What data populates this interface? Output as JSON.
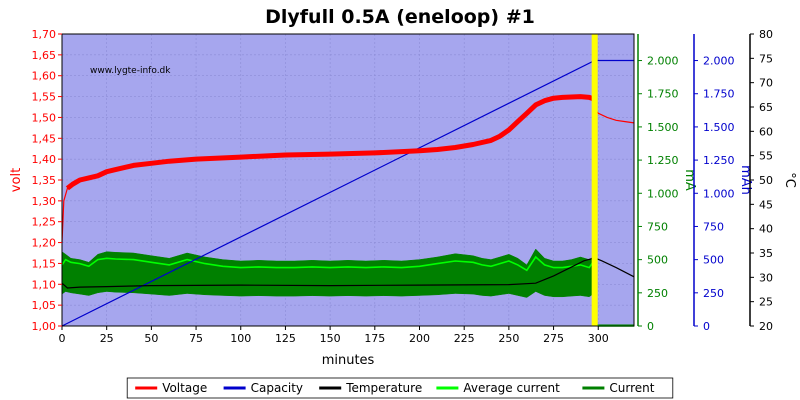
{
  "chart_data": {
    "type": "line",
    "title": "Dlyfull 0.5A (eneloop) #1",
    "watermark": "www.lygte-info.dk",
    "xlabel": "minutes",
    "xlim": [
      0,
      320
    ],
    "xticks": [
      0,
      25,
      50,
      75,
      100,
      125,
      150,
      175,
      200,
      225,
      250,
      275,
      300
    ],
    "marker_x": 298,
    "axes": {
      "volt": {
        "label": "volt",
        "lim": [
          1.0,
          1.7
        ],
        "ticks": [
          "1,00",
          "1,05",
          "1,10",
          "1,15",
          "1,20",
          "1,25",
          "1,30",
          "1,35",
          "1,40",
          "1,45",
          "1,50",
          "1,55",
          "1,60",
          "1,65",
          "1,70"
        ],
        "color": "#ff0000"
      },
      "mA": {
        "label": "mA",
        "lim": [
          0,
          2200
        ],
        "ticks": [
          "0",
          "250",
          "500",
          "750",
          "1.000",
          "1.250",
          "1.500",
          "1.750",
          "2.000"
        ],
        "color": "#008000"
      },
      "mAh": {
        "label": "mAh",
        "lim": [
          0,
          2200
        ],
        "ticks": [
          "0",
          "250",
          "500",
          "750",
          "1.000",
          "1.250",
          "1.500",
          "1.750",
          "2.000"
        ],
        "color": "#0000cc"
      },
      "temp": {
        "label": "°C",
        "lim": [
          20,
          80
        ],
        "ticks": [
          "20",
          "25",
          "30",
          "35",
          "40",
          "45",
          "50",
          "55",
          "60",
          "65",
          "70",
          "75",
          "80"
        ],
        "color": "#000000"
      }
    },
    "series": [
      {
        "name": "Voltage",
        "axis": "volt",
        "color": "#ff0000",
        "x": [
          0,
          1,
          3,
          6,
          10,
          15,
          20,
          25,
          30,
          40,
          50,
          60,
          75,
          100,
          125,
          150,
          175,
          200,
          210,
          220,
          230,
          240,
          245,
          250,
          255,
          260,
          265,
          270,
          275,
          280,
          285,
          290,
          295,
          297,
          298,
          300,
          305,
          310,
          315,
          320
        ],
        "y": [
          1.2,
          1.3,
          1.33,
          1.34,
          1.35,
          1.355,
          1.36,
          1.37,
          1.375,
          1.385,
          1.39,
          1.395,
          1.4,
          1.405,
          1.41,
          1.412,
          1.415,
          1.42,
          1.423,
          1.428,
          1.435,
          1.445,
          1.455,
          1.47,
          1.49,
          1.51,
          1.53,
          1.54,
          1.546,
          1.548,
          1.549,
          1.55,
          1.548,
          1.545,
          1.52,
          1.51,
          1.5,
          1.493,
          1.49,
          1.487
        ]
      },
      {
        "name": "Capacity",
        "axis": "mAh",
        "color": "#0000cc",
        "x": [
          0,
          298,
          320
        ],
        "y": [
          0,
          2000,
          2000
        ]
      },
      {
        "name": "Temperature",
        "axis": "temp",
        "color": "#000000",
        "x": [
          0,
          3,
          10,
          25,
          50,
          100,
          150,
          200,
          250,
          265,
          275,
          285,
          292,
          298,
          302,
          310,
          320
        ],
        "y": [
          28.8,
          27.8,
          28.0,
          28.1,
          28.3,
          28.4,
          28.3,
          28.4,
          28.5,
          28.8,
          30.3,
          32.1,
          33.4,
          34.0,
          33.4,
          32.0,
          30.1
        ]
      },
      {
        "name": "Average current",
        "axis": "mA",
        "color": "#00ff00",
        "x": [
          0,
          2,
          5,
          10,
          15,
          20,
          25,
          30,
          40,
          50,
          60,
          70,
          80,
          90,
          100,
          110,
          120,
          130,
          140,
          150,
          160,
          170,
          180,
          190,
          200,
          210,
          220,
          230,
          235,
          240,
          245,
          250,
          255,
          260,
          265,
          270,
          275,
          280,
          285,
          290,
          295,
          297,
          298,
          300,
          320
        ],
        "y": [
          460,
          500,
          480,
          470,
          450,
          500,
          510,
          505,
          500,
          480,
          460,
          500,
          470,
          450,
          440,
          445,
          440,
          440,
          445,
          440,
          445,
          440,
          445,
          440,
          450,
          470,
          490,
          480,
          460,
          450,
          470,
          490,
          460,
          420,
          520,
          460,
          440,
          440,
          450,
          460,
          440,
          480,
          20,
          0,
          0
        ]
      },
      {
        "name": "Current",
        "axis": "mA",
        "color": "#008000",
        "x": [
          0,
          2,
          5,
          10,
          15,
          20,
          25,
          30,
          40,
          50,
          60,
          70,
          80,
          90,
          100,
          110,
          120,
          130,
          140,
          150,
          160,
          170,
          180,
          190,
          200,
          210,
          220,
          230,
          235,
          240,
          245,
          250,
          255,
          260,
          265,
          270,
          275,
          280,
          285,
          290,
          295,
          297,
          298,
          300,
          320
        ],
        "ymin": [
          240,
          260,
          250,
          240,
          230,
          250,
          260,
          255,
          250,
          240,
          230,
          245,
          235,
          230,
          225,
          228,
          225,
          225,
          228,
          225,
          228,
          225,
          228,
          225,
          230,
          235,
          245,
          240,
          230,
          225,
          235,
          245,
          230,
          215,
          260,
          230,
          220,
          220,
          225,
          230,
          220,
          240,
          0,
          0,
          0
        ],
        "ymax": [
          560,
          540,
          510,
          500,
          480,
          540,
          560,
          555,
          550,
          530,
          510,
          550,
          520,
          500,
          490,
          495,
          490,
          490,
          495,
          490,
          495,
          490,
          495,
          490,
          500,
          520,
          545,
          530,
          510,
          500,
          520,
          540,
          510,
          460,
          580,
          510,
          490,
          490,
          500,
          520,
          500,
          520,
          20,
          10,
          10
        ]
      }
    ],
    "legend": {
      "placement": "bottom",
      "items": [
        {
          "name": "Voltage",
          "color": "#ff0000"
        },
        {
          "name": "Capacity",
          "color": "#0000cc"
        },
        {
          "name": "Temperature",
          "color": "#000000"
        },
        {
          "name": "Average current",
          "color": "#00ff00"
        },
        {
          "name": "Current",
          "color": "#008000"
        }
      ]
    }
  }
}
